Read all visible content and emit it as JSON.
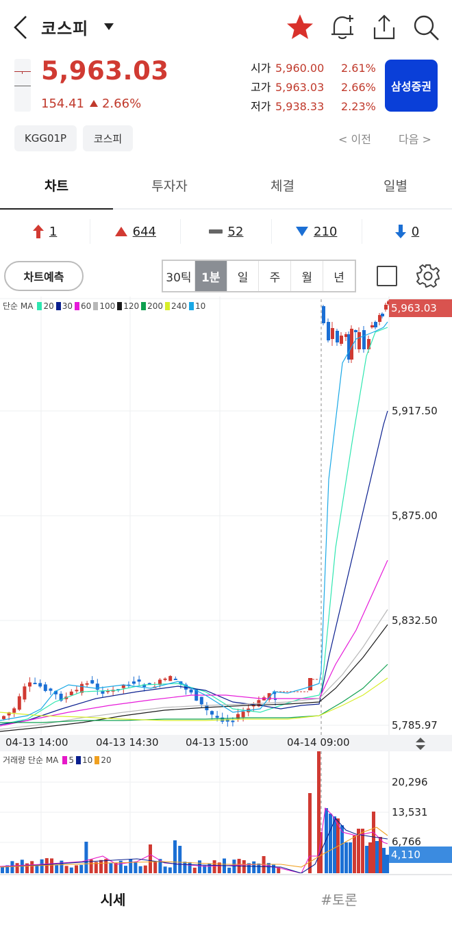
{
  "header": {
    "title": "코스피",
    "icons": [
      "back-icon",
      "chevron-down-icon",
      "star-icon",
      "bell-plus-icon",
      "share-icon",
      "search-icon"
    ],
    "favorite_color": "#d9312b"
  },
  "quote": {
    "price": "5,963.03",
    "change": "154.41",
    "change_pct": "2.66%",
    "direction": "up",
    "up_color": "#d03a32",
    "down_color": "#1b6fd4",
    "ohl": [
      {
        "label": "시가",
        "value": "5,960.00",
        "pct": "2.61%"
      },
      {
        "label": "고가",
        "value": "5,963.03",
        "pct": "2.66%"
      },
      {
        "label": "저가",
        "value": "5,938.33",
        "pct": "2.23%"
      }
    ],
    "broker_button": "삼성증권",
    "broker_color": "#0a3fd8",
    "chips": [
      "KGG01P",
      "코스피"
    ],
    "prev_label": "< 이전",
    "next_label": "다음 >"
  },
  "tabs": [
    {
      "label": "차트",
      "active": true
    },
    {
      "label": "투자자",
      "active": false
    },
    {
      "label": "체결",
      "active": false
    },
    {
      "label": "일별",
      "active": false
    }
  ],
  "breadth": [
    {
      "icon": "upper-limit-arrow-icon",
      "value": "1"
    },
    {
      "icon": "rise-triangle-icon",
      "value": "644"
    },
    {
      "icon": "flat-bar-icon",
      "value": "52"
    },
    {
      "icon": "fall-triangle-icon",
      "value": "210"
    },
    {
      "icon": "lower-limit-arrow-icon",
      "value": "0"
    }
  ],
  "chart_toolbar": {
    "predict_label": "차트예측",
    "periods": [
      {
        "label": "30틱",
        "active": false
      },
      {
        "label": "1분",
        "active": true
      },
      {
        "label": "일",
        "active": false
      },
      {
        "label": "주",
        "active": false
      },
      {
        "label": "월",
        "active": false
      },
      {
        "label": "년",
        "active": false
      }
    ]
  },
  "chart_data": {
    "type": "candlestick",
    "title": "코스피 1분",
    "price_axis": {
      "ticks": [
        "5,917.50",
        "5,875.00",
        "5,832.50",
        "5,785.97"
      ],
      "tick_values": [
        5917.5,
        5875.0,
        5832.5,
        5785.97
      ],
      "current": "5,963.03",
      "ylim": [
        5783,
        5968
      ]
    },
    "x_ticks": [
      "04-13 14:00",
      "04-13 14:30",
      "04-13 15:00",
      "04-14 09:00"
    ],
    "session_break": "04-14 09:00",
    "ma_legend": {
      "label": "단순 MA",
      "items": [
        {
          "period": "20",
          "color": "#2ee6b0"
        },
        {
          "period": "30",
          "color": "#0a1f8f"
        },
        {
          "period": "60",
          "color": "#e619d9"
        },
        {
          "period": "100",
          "color": "#b8b8b8"
        },
        {
          "period": "120",
          "color": "#1a1a1a"
        },
        {
          "period": "200",
          "color": "#0fa050"
        },
        {
          "period": "240",
          "color": "#d8ee2a"
        },
        {
          "period": "10",
          "color": "#19a8e6"
        }
      ]
    },
    "candles_close_approx": {
      "day1_range": [
        5788,
        5810
      ],
      "day2_open": 5960.0,
      "day2_high": 5963.03,
      "day2_low": 5938.33,
      "day2_close": 5963.03
    },
    "volume": {
      "legend_label": "거래량 단순 MA",
      "ma_items": [
        {
          "period": "5",
          "color": "#e619c8"
        },
        {
          "period": "10",
          "color": "#0a1f8f"
        },
        {
          "period": "20",
          "color": "#f0a020"
        }
      ],
      "ticks": [
        "20,296",
        "13,531",
        "6,766"
      ],
      "tick_values": [
        20296,
        13531,
        6766
      ],
      "current": "4,110"
    }
  },
  "bottom_nav": [
    {
      "label": "시세",
      "active": true
    },
    {
      "label": "#토론",
      "active": false
    }
  ]
}
